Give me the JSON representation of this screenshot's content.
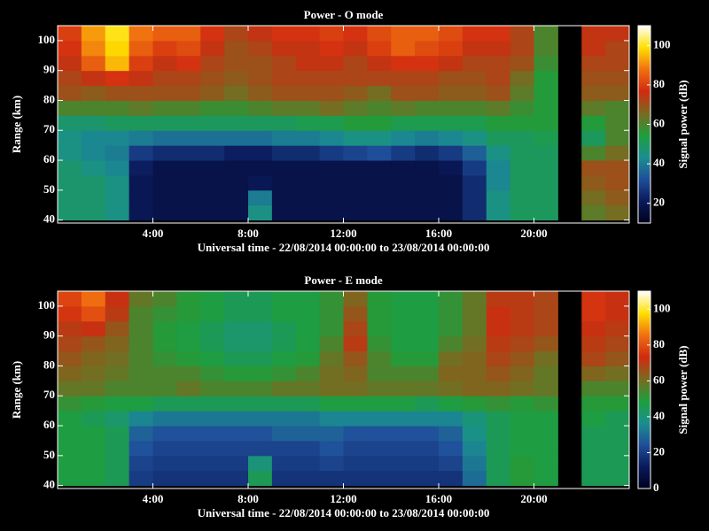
{
  "chart_data": [
    {
      "type": "heatmap",
      "title": "Power - O mode",
      "xlabel": "Universal time - 22/08/2014 00:00:00 to 23/08/2014 00:00:00",
      "ylabel": "Range (km)",
      "colorbar_label": "Signal power (dB)",
      "x": [
        0.5,
        1.5,
        2.5,
        3.5,
        4.5,
        5.5,
        6.5,
        7.5,
        8.5,
        9.5,
        10.5,
        11.5,
        12.5,
        13.5,
        14.5,
        15.5,
        16.5,
        17.5,
        18.5,
        19.5,
        20.5,
        21.5,
        22.5,
        23.5
      ],
      "y": [
        42.5,
        47.5,
        52.5,
        57.5,
        62.5,
        67.5,
        72.5,
        77.5,
        82.5,
        87.5,
        92.5,
        97.5,
        102.5
      ],
      "xlim": [
        0,
        24
      ],
      "ylim": [
        39,
        105
      ],
      "xticks": [
        {
          "value": 4,
          "label": "4:00"
        },
        {
          "value": 8,
          "label": "8:00"
        },
        {
          "value": 12,
          "label": "12:00"
        },
        {
          "value": 16,
          "label": "16:00"
        },
        {
          "value": 20,
          "label": "20:00"
        }
      ],
      "yticks": [
        40,
        50,
        60,
        70,
        80,
        90,
        100
      ],
      "clim": [
        10,
        110
      ],
      "cticks": [
        20,
        40,
        60,
        80,
        100
      ],
      "colormap": [
        "#00001e",
        "#0a1a5a",
        "#1f4f9a",
        "#1a8f8f",
        "#1e9e3c",
        "#7a6a20",
        "#d02a10",
        "#f07010",
        "#ffe000",
        "#ffffff"
      ],
      "values": [
        [
          48,
          48,
          45,
          20,
          18,
          18,
          18,
          18,
          45,
          18,
          18,
          18,
          18,
          18,
          18,
          18,
          18,
          25,
          45,
          50,
          50,
          null,
          62,
          65
        ],
        [
          48,
          48,
          45,
          20,
          18,
          18,
          18,
          18,
          40,
          18,
          18,
          18,
          18,
          18,
          18,
          18,
          18,
          25,
          45,
          50,
          50,
          null,
          65,
          68
        ],
        [
          48,
          48,
          45,
          20,
          18,
          18,
          18,
          18,
          20,
          18,
          18,
          18,
          18,
          18,
          18,
          18,
          18,
          25,
          42,
          50,
          50,
          null,
          68,
          70
        ],
        [
          48,
          45,
          42,
          22,
          18,
          18,
          18,
          18,
          18,
          18,
          18,
          18,
          18,
          18,
          18,
          18,
          20,
          28,
          42,
          50,
          50,
          null,
          70,
          70
        ],
        [
          45,
          42,
          40,
          28,
          25,
          25,
          25,
          22,
          22,
          25,
          25,
          28,
          30,
          32,
          28,
          25,
          28,
          35,
          45,
          50,
          50,
          null,
          60,
          65
        ],
        [
          45,
          42,
          42,
          40,
          38,
          38,
          38,
          38,
          38,
          40,
          40,
          42,
          45,
          45,
          42,
          40,
          42,
          45,
          50,
          50,
          52,
          null,
          50,
          60
        ],
        [
          48,
          48,
          50,
          50,
          50,
          50,
          50,
          50,
          50,
          50,
          52,
          52,
          55,
          55,
          52,
          52,
          52,
          52,
          55,
          55,
          55,
          null,
          55,
          60
        ],
        [
          60,
          60,
          60,
          62,
          60,
          60,
          58,
          58,
          60,
          62,
          62,
          65,
          62,
          60,
          62,
          60,
          60,
          60,
          62,
          58,
          55,
          null,
          62,
          60
        ],
        [
          70,
          68,
          70,
          70,
          70,
          70,
          68,
          65,
          68,
          70,
          70,
          70,
          68,
          65,
          70,
          70,
          68,
          68,
          70,
          62,
          55,
          null,
          68,
          68
        ],
        [
          72,
          75,
          78,
          75,
          72,
          72,
          70,
          68,
          70,
          72,
          72,
          72,
          72,
          72,
          72,
          72,
          70,
          70,
          72,
          65,
          55,
          null,
          70,
          70
        ],
        [
          75,
          85,
          95,
          80,
          75,
          78,
          72,
          70,
          70,
          72,
          75,
          75,
          72,
          75,
          78,
          78,
          75,
          72,
          72,
          70,
          58,
          null,
          72,
          72
        ],
        [
          78,
          90,
          98,
          85,
          80,
          82,
          75,
          70,
          72,
          75,
          75,
          78,
          75,
          80,
          85,
          82,
          80,
          75,
          75,
          72,
          60,
          null,
          75,
          72
        ],
        [
          80,
          92,
          100,
          88,
          85,
          85,
          78,
          72,
          75,
          78,
          78,
          80,
          78,
          82,
          85,
          85,
          82,
          78,
          78,
          72,
          60,
          null,
          75,
          75
        ]
      ]
    },
    {
      "type": "heatmap",
      "title": "Power - E mode",
      "xlabel": "Universal time - 22/08/2014 00:00:00 to 23/08/2014 00:00:00",
      "ylabel": "Range (km)",
      "colorbar_label": "Signal power (dB)",
      "x": [
        0.5,
        1.5,
        2.5,
        3.5,
        4.5,
        5.5,
        6.5,
        7.5,
        8.5,
        9.5,
        10.5,
        11.5,
        12.5,
        13.5,
        14.5,
        15.5,
        16.5,
        17.5,
        18.5,
        19.5,
        20.5,
        21.5,
        22.5,
        23.5
      ],
      "y": [
        42.5,
        47.5,
        52.5,
        57.5,
        62.5,
        67.5,
        72.5,
        77.5,
        82.5,
        87.5,
        92.5,
        97.5,
        102.5
      ],
      "xlim": [
        0,
        24
      ],
      "ylim": [
        39,
        105
      ],
      "xticks": [
        {
          "value": 4,
          "label": "4:00"
        },
        {
          "value": 8,
          "label": "8:00"
        },
        {
          "value": 12,
          "label": "12:00"
        },
        {
          "value": 16,
          "label": "16:00"
        },
        {
          "value": 20,
          "label": "20:00"
        }
      ],
      "yticks": [
        40,
        50,
        60,
        70,
        80,
        90,
        100
      ],
      "clim": [
        0,
        110
      ],
      "cticks": [
        0,
        20,
        40,
        60,
        80,
        100
      ],
      "colormap": [
        "#00001e",
        "#0a1a5a",
        "#1f4f9a",
        "#1a8f8f",
        "#1e9e3c",
        "#7a6a20",
        "#d02a10",
        "#f07010",
        "#ffe000",
        "#ffffff"
      ],
      "values": [
        [
          48,
          48,
          45,
          20,
          18,
          18,
          18,
          18,
          45,
          18,
          18,
          18,
          18,
          18,
          18,
          18,
          18,
          30,
          45,
          50,
          48,
          null,
          45,
          45
        ],
        [
          48,
          48,
          45,
          22,
          20,
          20,
          20,
          20,
          40,
          20,
          20,
          22,
          20,
          20,
          20,
          20,
          22,
          32,
          45,
          50,
          48,
          null,
          45,
          45
        ],
        [
          48,
          48,
          45,
          25,
          22,
          22,
          22,
          22,
          22,
          22,
          22,
          25,
          22,
          22,
          22,
          22,
          25,
          35,
          45,
          48,
          48,
          null,
          45,
          45
        ],
        [
          48,
          48,
          45,
          28,
          25,
          25,
          25,
          25,
          25,
          28,
          28,
          28,
          25,
          25,
          25,
          25,
          28,
          38,
          45,
          48,
          48,
          null,
          45,
          45
        ],
        [
          48,
          45,
          42,
          35,
          32,
          32,
          32,
          32,
          32,
          32,
          32,
          35,
          35,
          35,
          35,
          35,
          35,
          40,
          45,
          48,
          48,
          null,
          48,
          45
        ],
        [
          52,
          50,
          48,
          48,
          45,
          45,
          45,
          45,
          45,
          45,
          45,
          48,
          48,
          48,
          48,
          45,
          48,
          50,
          52,
          50,
          52,
          null,
          50,
          50
        ],
        [
          58,
          58,
          55,
          55,
          55,
          58,
          55,
          55,
          55,
          58,
          58,
          60,
          60,
          58,
          58,
          58,
          60,
          62,
          62,
          60,
          58,
          null,
          55,
          55
        ],
        [
          62,
          60,
          58,
          55,
          55,
          55,
          52,
          50,
          50,
          52,
          55,
          60,
          62,
          55,
          55,
          55,
          62,
          62,
          65,
          62,
          58,
          null,
          62,
          60
        ],
        [
          65,
          62,
          60,
          55,
          52,
          50,
          48,
          45,
          45,
          48,
          50,
          58,
          65,
          55,
          50,
          50,
          60,
          62,
          68,
          65,
          60,
          null,
          68,
          65
        ],
        [
          68,
          65,
          62,
          55,
          50,
          48,
          45,
          42,
          42,
          45,
          48,
          55,
          70,
          52,
          48,
          48,
          55,
          60,
          70,
          68,
          65,
          null,
          70,
          68
        ],
        [
          70,
          72,
          65,
          55,
          50,
          48,
          45,
          42,
          42,
          45,
          48,
          52,
          68,
          50,
          48,
          48,
          52,
          58,
          72,
          70,
          68,
          null,
          72,
          70
        ],
        [
          75,
          80,
          70,
          55,
          52,
          50,
          48,
          45,
          45,
          48,
          48,
          52,
          65,
          50,
          48,
          48,
          52,
          58,
          72,
          70,
          68,
          null,
          75,
          72
        ],
        [
          78,
          85,
          72,
          58,
          55,
          50,
          48,
          45,
          45,
          48,
          48,
          52,
          62,
          50,
          48,
          48,
          52,
          58,
          70,
          70,
          68,
          null,
          75,
          72
        ]
      ]
    }
  ]
}
